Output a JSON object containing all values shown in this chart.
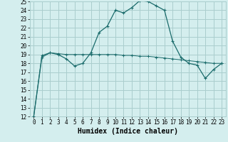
{
  "title": "",
  "xlabel": "Humidex (Indice chaleur)",
  "ylabel": "",
  "bg_color": "#d4eeee",
  "grid_color": "#aacece",
  "line_color": "#1a6b6b",
  "xlim": [
    -0.5,
    23.5
  ],
  "ylim": [
    12,
    25
  ],
  "xticks": [
    0,
    1,
    2,
    3,
    4,
    5,
    6,
    7,
    8,
    9,
    10,
    11,
    12,
    13,
    14,
    15,
    16,
    17,
    18,
    19,
    20,
    21,
    22,
    23
  ],
  "yticks": [
    12,
    13,
    14,
    15,
    16,
    17,
    18,
    19,
    20,
    21,
    22,
    23,
    24,
    25
  ],
  "line1_x": [
    0,
    1,
    2,
    3,
    4,
    5,
    6,
    7,
    8,
    9,
    10,
    11,
    12,
    13,
    14,
    15,
    16,
    17,
    18,
    19,
    20,
    21,
    22,
    23
  ],
  "line1_y": [
    12,
    18.7,
    19.2,
    19.0,
    18.5,
    17.7,
    18.0,
    19.2,
    21.5,
    22.2,
    24.0,
    23.7,
    24.3,
    25.1,
    25.0,
    24.5,
    24.0,
    20.5,
    18.7,
    18.0,
    17.8,
    16.3,
    17.3,
    18.0
  ],
  "line2_x": [
    0,
    1,
    2,
    3,
    4,
    5,
    6,
    7,
    8,
    9,
    10,
    11,
    12,
    13,
    14,
    15,
    16,
    17,
    18,
    19,
    20,
    21,
    22,
    23
  ],
  "line2_y": [
    12,
    18.9,
    19.2,
    19.1,
    19.0,
    19.0,
    19.0,
    19.0,
    19.0,
    19.0,
    19.0,
    18.9,
    18.9,
    18.8,
    18.8,
    18.7,
    18.6,
    18.5,
    18.4,
    18.3,
    18.2,
    18.1,
    18.0,
    18.0
  ],
  "tick_fontsize": 5.5,
  "xlabel_fontsize": 7
}
